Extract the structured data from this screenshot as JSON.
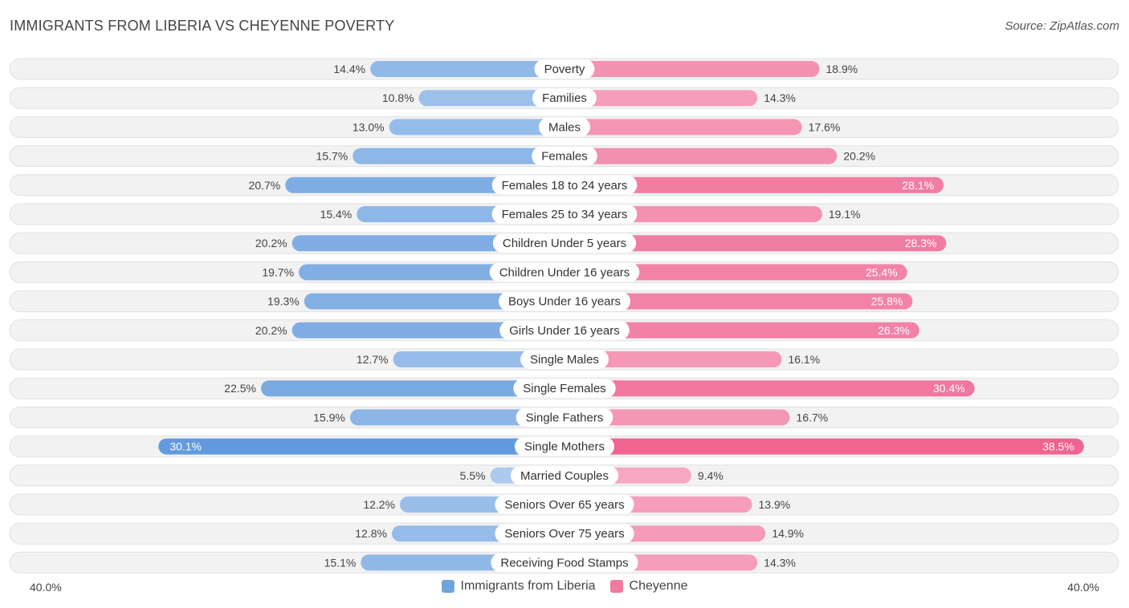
{
  "title": "IMMIGRANTS FROM LIBERIA VS CHEYENNE POVERTY",
  "source": "Source: ZipAtlas.com",
  "axis": {
    "left_label": "40.0%",
    "right_label": "40.0%"
  },
  "legend": {
    "left": {
      "label": "Immigrants from Liberia",
      "color": "#6fa3dc"
    },
    "right": {
      "label": "Cheyenne",
      "color": "#f07ba0"
    }
  },
  "chart_data": {
    "type": "bar",
    "orientation": "diverging-horizontal",
    "title": "IMMIGRANTS FROM LIBERIA VS CHEYENNE POVERTY",
    "xlim": [
      0,
      40
    ],
    "categories": [
      "Poverty",
      "Families",
      "Males",
      "Females",
      "Females 18 to 24 years",
      "Females 25 to 34 years",
      "Children Under 5 years",
      "Children Under 16 years",
      "Boys Under 16 years",
      "Girls Under 16 years",
      "Single Males",
      "Single Females",
      "Single Fathers",
      "Single Mothers",
      "Married Couples",
      "Seniors Over 65 years",
      "Seniors Over 75 years",
      "Receiving Food Stamps"
    ],
    "series": [
      {
        "name": "Immigrants from Liberia",
        "values": [
          14.4,
          10.8,
          13.0,
          15.7,
          20.7,
          15.4,
          20.2,
          19.7,
          19.3,
          20.2,
          12.7,
          22.5,
          15.9,
          30.1,
          5.5,
          12.2,
          12.8,
          15.1
        ],
        "labels": [
          "14.4%",
          "10.8%",
          "13.0%",
          "15.7%",
          "20.7%",
          "15.4%",
          "20.2%",
          "19.7%",
          "19.3%",
          "20.2%",
          "12.7%",
          "22.5%",
          "15.9%",
          "30.1%",
          "5.5%",
          "12.2%",
          "12.8%",
          "15.1%"
        ]
      },
      {
        "name": "Cheyenne",
        "values": [
          18.9,
          14.3,
          17.6,
          20.2,
          28.1,
          19.1,
          28.3,
          25.4,
          25.8,
          26.3,
          16.1,
          30.4,
          16.7,
          38.5,
          9.4,
          13.9,
          14.9,
          14.3
        ],
        "labels": [
          "18.9%",
          "14.3%",
          "17.6%",
          "20.2%",
          "28.1%",
          "19.1%",
          "28.3%",
          "25.4%",
          "25.8%",
          "26.3%",
          "16.1%",
          "30.4%",
          "16.7%",
          "38.5%",
          "9.4%",
          "13.9%",
          "14.9%",
          "14.3%"
        ]
      }
    ]
  }
}
